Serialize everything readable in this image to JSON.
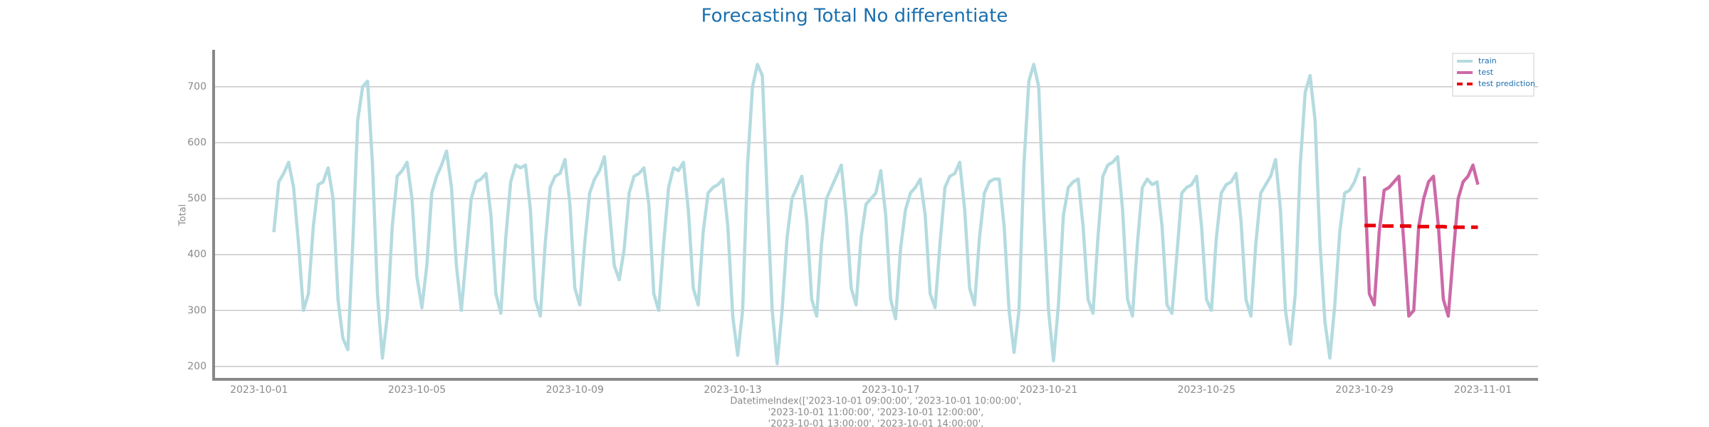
{
  "chart_data": {
    "type": "line",
    "title": "Forecasting Total No differentiate",
    "ylabel": "Total",
    "xlabel": [
      "DatetimeIndex(['2023-10-01 09:00:00', '2023-10-01 10:00:00',",
      "'2023-10-01 11:00:00', '2023-10-01 12:00:00',",
      "'2023-10-01 13:00:00', '2023-10-01 14:00:00',"
    ],
    "ylim": [
      177,
      766
    ],
    "yticks": [
      200,
      300,
      400,
      500,
      600,
      700
    ],
    "xticks": [
      "2023-10-01",
      "2023-10-05",
      "2023-10-09",
      "2023-10-13",
      "2023-10-17",
      "2023-10-21",
      "2023-10-25",
      "2023-10-29",
      "2023-11-01"
    ],
    "grid": true,
    "legend": "upper right",
    "series": [
      {
        "name": "train",
        "color": "#b4dbe0",
        "linestyle": "solid",
        "x": [
          "2023-10-01 09:00",
          "2023-10-01 12:00",
          "2023-10-01 15:00",
          "2023-10-01 18:00",
          "2023-10-01 21:00",
          "2023-10-02 00:00",
          "2023-10-02 03:00",
          "2023-10-02 06:00",
          "2023-10-02 09:00",
          "2023-10-02 12:00",
          "2023-10-02 15:00",
          "2023-10-02 18:00",
          "2023-10-02 21:00",
          "2023-10-03 00:00",
          "2023-10-03 03:00",
          "2023-10-03 06:00",
          "2023-10-03 09:00",
          "2023-10-03 12:00",
          "2023-10-03 15:00",
          "2023-10-03 18:00",
          "2023-10-03 21:00",
          "2023-10-04 00:00",
          "2023-10-04 03:00",
          "2023-10-04 06:00",
          "2023-10-04 09:00",
          "2023-10-04 12:00",
          "2023-10-04 15:00",
          "2023-10-04 18:00",
          "2023-10-04 21:00",
          "2023-10-05 00:00",
          "2023-10-05 03:00",
          "2023-10-05 06:00",
          "2023-10-05 09:00",
          "2023-10-05 12:00",
          "2023-10-05 15:00",
          "2023-10-05 18:00",
          "2023-10-05 21:00",
          "2023-10-06 00:00",
          "2023-10-06 03:00",
          "2023-10-06 06:00",
          "2023-10-06 09:00",
          "2023-10-06 12:00",
          "2023-10-06 15:00",
          "2023-10-06 18:00",
          "2023-10-06 21:00",
          "2023-10-07 00:00",
          "2023-10-07 03:00",
          "2023-10-07 06:00",
          "2023-10-07 09:00",
          "2023-10-07 12:00",
          "2023-10-07 15:00",
          "2023-10-07 18:00",
          "2023-10-07 21:00",
          "2023-10-08 00:00",
          "2023-10-08 03:00",
          "2023-10-08 06:00",
          "2023-10-08 09:00",
          "2023-10-08 12:00",
          "2023-10-08 15:00",
          "2023-10-08 18:00",
          "2023-10-08 21:00",
          "2023-10-09 00:00",
          "2023-10-09 03:00",
          "2023-10-09 06:00",
          "2023-10-09 09:00",
          "2023-10-09 12:00",
          "2023-10-09 15:00",
          "2023-10-09 18:00",
          "2023-10-09 21:00",
          "2023-10-10 00:00",
          "2023-10-10 03:00",
          "2023-10-10 06:00",
          "2023-10-10 09:00",
          "2023-10-10 12:00",
          "2023-10-10 15:00",
          "2023-10-10 18:00",
          "2023-10-10 21:00",
          "2023-10-11 00:00",
          "2023-10-11 03:00",
          "2023-10-11 06:00",
          "2023-10-11 09:00",
          "2023-10-11 12:00",
          "2023-10-11 15:00",
          "2023-10-11 18:00",
          "2023-10-11 21:00",
          "2023-10-12 00:00",
          "2023-10-12 03:00",
          "2023-10-12 06:00",
          "2023-10-12 09:00",
          "2023-10-12 12:00",
          "2023-10-12 15:00",
          "2023-10-12 18:00",
          "2023-10-12 21:00",
          "2023-10-13 00:00",
          "2023-10-13 03:00",
          "2023-10-13 06:00",
          "2023-10-13 09:00",
          "2023-10-13 12:00",
          "2023-10-13 15:00",
          "2023-10-13 18:00",
          "2023-10-13 21:00",
          "2023-10-14 00:00",
          "2023-10-14 03:00",
          "2023-10-14 06:00",
          "2023-10-14 09:00",
          "2023-10-14 12:00",
          "2023-10-14 15:00",
          "2023-10-14 18:00",
          "2023-10-14 21:00",
          "2023-10-15 00:00",
          "2023-10-15 03:00",
          "2023-10-15 06:00",
          "2023-10-15 09:00",
          "2023-10-15 12:00",
          "2023-10-15 15:00",
          "2023-10-15 18:00",
          "2023-10-15 21:00",
          "2023-10-16 00:00",
          "2023-10-16 03:00",
          "2023-10-16 06:00",
          "2023-10-16 09:00",
          "2023-10-16 12:00",
          "2023-10-16 15:00",
          "2023-10-16 18:00",
          "2023-10-16 21:00",
          "2023-10-17 00:00",
          "2023-10-17 03:00",
          "2023-10-17 06:00",
          "2023-10-17 09:00",
          "2023-10-17 12:00",
          "2023-10-17 15:00",
          "2023-10-17 18:00",
          "2023-10-17 21:00",
          "2023-10-18 00:00",
          "2023-10-18 03:00",
          "2023-10-18 06:00",
          "2023-10-18 09:00",
          "2023-10-18 12:00",
          "2023-10-18 15:00",
          "2023-10-18 18:00",
          "2023-10-18 21:00",
          "2023-10-19 00:00",
          "2023-10-19 03:00",
          "2023-10-19 06:00",
          "2023-10-19 09:00",
          "2023-10-19 12:00",
          "2023-10-19 15:00",
          "2023-10-19 18:00",
          "2023-10-19 21:00",
          "2023-10-20 00:00",
          "2023-10-20 03:00",
          "2023-10-20 06:00",
          "2023-10-20 09:00",
          "2023-10-20 12:00",
          "2023-10-20 15:00",
          "2023-10-20 18:00",
          "2023-10-20 21:00",
          "2023-10-21 00:00",
          "2023-10-21 03:00",
          "2023-10-21 06:00",
          "2023-10-21 09:00",
          "2023-10-21 12:00",
          "2023-10-21 15:00",
          "2023-10-21 18:00",
          "2023-10-21 21:00",
          "2023-10-22 00:00",
          "2023-10-22 03:00",
          "2023-10-22 06:00",
          "2023-10-22 09:00",
          "2023-10-22 12:00",
          "2023-10-22 15:00",
          "2023-10-22 18:00",
          "2023-10-22 21:00",
          "2023-10-23 00:00",
          "2023-10-23 03:00",
          "2023-10-23 06:00",
          "2023-10-23 09:00",
          "2023-10-23 12:00",
          "2023-10-23 15:00",
          "2023-10-23 18:00",
          "2023-10-23 21:00",
          "2023-10-24 00:00",
          "2023-10-24 03:00",
          "2023-10-24 06:00",
          "2023-10-24 09:00",
          "2023-10-24 12:00",
          "2023-10-24 15:00",
          "2023-10-24 18:00",
          "2023-10-24 21:00",
          "2023-10-25 00:00",
          "2023-10-25 03:00",
          "2023-10-25 06:00",
          "2023-10-25 09:00",
          "2023-10-25 12:00",
          "2023-10-25 15:00",
          "2023-10-25 18:00",
          "2023-10-25 21:00",
          "2023-10-26 00:00",
          "2023-10-26 03:00",
          "2023-10-26 06:00",
          "2023-10-26 09:00",
          "2023-10-26 12:00",
          "2023-10-26 15:00",
          "2023-10-26 18:00",
          "2023-10-26 21:00",
          "2023-10-27 00:00",
          "2023-10-27 03:00",
          "2023-10-27 06:00",
          "2023-10-27 09:00",
          "2023-10-27 12:00",
          "2023-10-27 15:00",
          "2023-10-27 18:00",
          "2023-10-27 21:00",
          "2023-10-28 00:00",
          "2023-10-28 03:00",
          "2023-10-28 06:00",
          "2023-10-28 09:00",
          "2023-10-28 12:00",
          "2023-10-28 15:00",
          "2023-10-28 18:00",
          "2023-10-28 21:00"
        ],
        "values": [
          440,
          530,
          545,
          565,
          520,
          420,
          300,
          330,
          450,
          525,
          530,
          555,
          500,
          320,
          250,
          230,
          420,
          640,
          700,
          710,
          560,
          330,
          215,
          290,
          450,
          540,
          550,
          565,
          500,
          360,
          305,
          380,
          510,
          540,
          560,
          585,
          520,
          380,
          300,
          400,
          500,
          530,
          535,
          545,
          470,
          330,
          295,
          430,
          530,
          560,
          555,
          560,
          480,
          320,
          290,
          420,
          520,
          540,
          545,
          570,
          490,
          340,
          310,
          420,
          510,
          535,
          550,
          575,
          480,
          380,
          355,
          410,
          510,
          540,
          545,
          555,
          490,
          330,
          300,
          420,
          520,
          555,
          550,
          565,
          480,
          340,
          310,
          440,
          510,
          520,
          525,
          535,
          450,
          290,
          220,
          300,
          560,
          700,
          740,
          720,
          500,
          300,
          205,
          300,
          430,
          500,
          520,
          540,
          460,
          320,
          290,
          420,
          500,
          520,
          540,
          560,
          470,
          340,
          310,
          430,
          490,
          500,
          510,
          550,
          470,
          320,
          285,
          410,
          480,
          510,
          520,
          535,
          470,
          330,
          305,
          420,
          520,
          540,
          545,
          565,
          480,
          340,
          310,
          430,
          510,
          530,
          535,
          535,
          450,
          300,
          225,
          300,
          560,
          710,
          740,
          700,
          480,
          300,
          210,
          310,
          470,
          520,
          530,
          535,
          450,
          320,
          295,
          430,
          540,
          560,
          565,
          575,
          480,
          320,
          290,
          420,
          520,
          535,
          525,
          530,
          450,
          310,
          295,
          400,
          510,
          520,
          525,
          540,
          450,
          320,
          300,
          430,
          510,
          525,
          530,
          545,
          460,
          320,
          290,
          420,
          510,
          525,
          540,
          570,
          480,
          300,
          240,
          330,
          560,
          690,
          720,
          640,
          420,
          280,
          215,
          310,
          440,
          510,
          515,
          530,
          555
        ]
      },
      {
        "name": "test",
        "color": "#cc6aa8",
        "linestyle": "solid",
        "x": [
          "2023-10-29 00:00",
          "2023-10-29 03:00",
          "2023-10-29 06:00",
          "2023-10-29 09:00",
          "2023-10-29 12:00",
          "2023-10-29 15:00",
          "2023-10-29 18:00",
          "2023-10-29 21:00",
          "2023-10-30 00:00",
          "2023-10-30 03:00",
          "2023-10-30 06:00",
          "2023-10-30 09:00",
          "2023-10-30 12:00",
          "2023-10-30 15:00",
          "2023-10-30 18:00",
          "2023-10-30 21:00",
          "2023-10-31 00:00",
          "2023-10-31 03:00",
          "2023-10-31 06:00",
          "2023-10-31 09:00",
          "2023-10-31 12:00",
          "2023-10-31 15:00",
          "2023-10-31 18:00",
          "2023-10-31 21:00"
        ],
        "values": [
          540,
          330,
          310,
          440,
          515,
          520,
          530,
          540,
          420,
          290,
          300,
          450,
          500,
          530,
          540,
          450,
          320,
          290,
          400,
          500,
          530,
          540,
          560,
          525
        ]
      },
      {
        "name": "test prediction",
        "color": "#e8000b",
        "linestyle": "dashed",
        "x": [
          "2023-10-29 00:00",
          "2023-10-29 03:00",
          "2023-10-29 06:00",
          "2023-10-29 09:00",
          "2023-10-29 12:00",
          "2023-10-29 15:00",
          "2023-10-29 18:00",
          "2023-10-29 21:00",
          "2023-10-30 00:00",
          "2023-10-30 03:00",
          "2023-10-30 06:00",
          "2023-10-30 09:00",
          "2023-10-30 12:00",
          "2023-10-30 15:00",
          "2023-10-30 18:00",
          "2023-10-30 21:00",
          "2023-10-31 00:00",
          "2023-10-31 03:00",
          "2023-10-31 06:00",
          "2023-10-31 09:00",
          "2023-10-31 12:00",
          "2023-10-31 15:00",
          "2023-10-31 18:00",
          "2023-10-31 21:00"
        ],
        "values": [
          452,
          452,
          452,
          452,
          451,
          451,
          451,
          451,
          451,
          451,
          450,
          450,
          450,
          450,
          450,
          450,
          450,
          449,
          449,
          449,
          449,
          449,
          449,
          449
        ]
      }
    ]
  }
}
